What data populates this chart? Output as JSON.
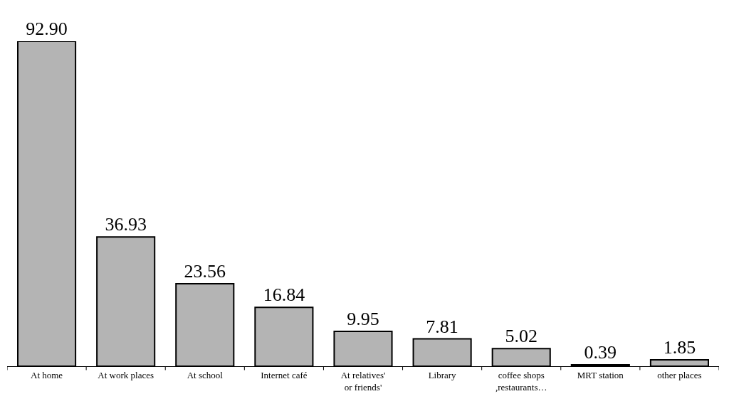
{
  "chart_data": {
    "type": "bar",
    "categories": [
      "At home",
      "At work places",
      "At school",
      "Internet café",
      "At relatives' or friends'",
      "Library",
      "coffee shops ,restaurants…",
      "MRT station",
      "other places"
    ],
    "values": [
      92.9,
      36.93,
      23.56,
      16.84,
      9.95,
      7.81,
      5.02,
      0.39,
      1.85
    ],
    "value_labels": [
      "92.90",
      "36.93",
      "23.56",
      "16.84",
      "9.95",
      "7.81",
      "5.02",
      "0.39",
      "1.85"
    ],
    "color": "#b4b4b4",
    "data_labels": true
  }
}
